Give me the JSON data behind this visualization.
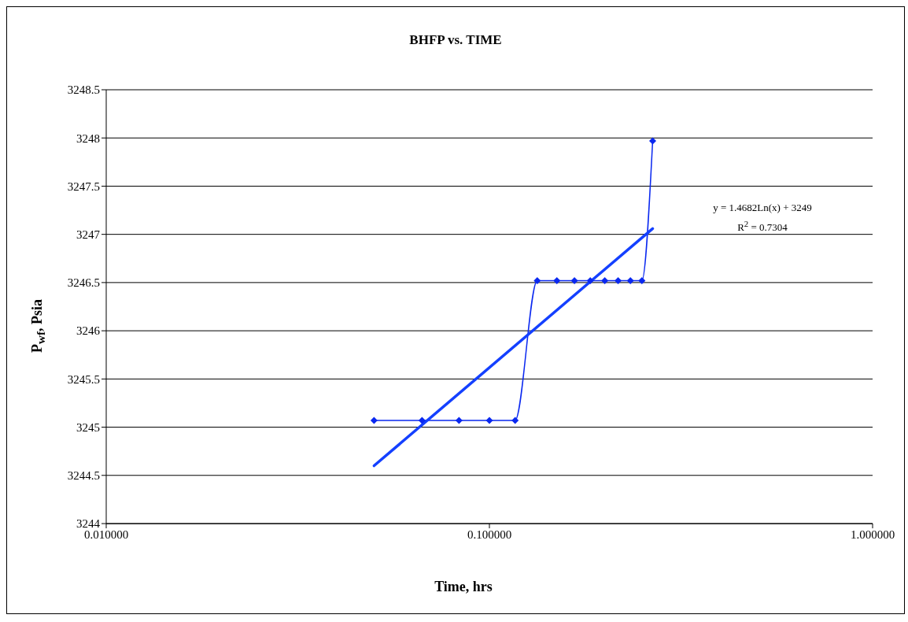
{
  "chart_data": {
    "type": "line",
    "title": "BHFP vs. TIME",
    "xlabel": "Time, hrs",
    "ylabel": "P$_{wf}$, Psia",
    "series": [
      {
        "color": "#0a28f0",
        "marker": "diamond",
        "x": [
          0.05,
          0.0667,
          0.0833,
          0.1,
          0.1167,
          0.1333,
          0.15,
          0.1667,
          0.1833,
          0.2,
          0.2167,
          0.2333,
          0.25,
          0.2667
        ],
        "values": [
          3245.07,
          3245.07,
          3245.07,
          3245.07,
          3245.07,
          3246.52,
          3246.52,
          3246.52,
          3246.52,
          3246.52,
          3246.52,
          3246.52,
          3246.52,
          3247.97
        ]
      },
      {
        "color": "#1440ff",
        "marker": "none",
        "x": [
          0.05,
          0.2667
        ],
        "values": [
          3244.6,
          3247.06
        ]
      }
    ],
    "annotations": [
      "y = 1.4682Ln(x) + 3249",
      "R$^{2}$ = 0.7304"
    ],
    "log": "x",
    "xlim": [
      0.01,
      1
    ],
    "xticks": [
      {
        "value": 0.01,
        "label": "0.010000"
      },
      {
        "value": 0.1,
        "label": "0.100000"
      },
      {
        "value": 1,
        "label": "1.000000"
      }
    ],
    "ylim": [
      3244,
      3248.5
    ],
    "yticks": [
      3244,
      3244.5,
      3245,
      3245.5,
      3246,
      3246.5,
      3247,
      3247.5,
      3248,
      3248.5
    ],
    "grid": "y"
  }
}
